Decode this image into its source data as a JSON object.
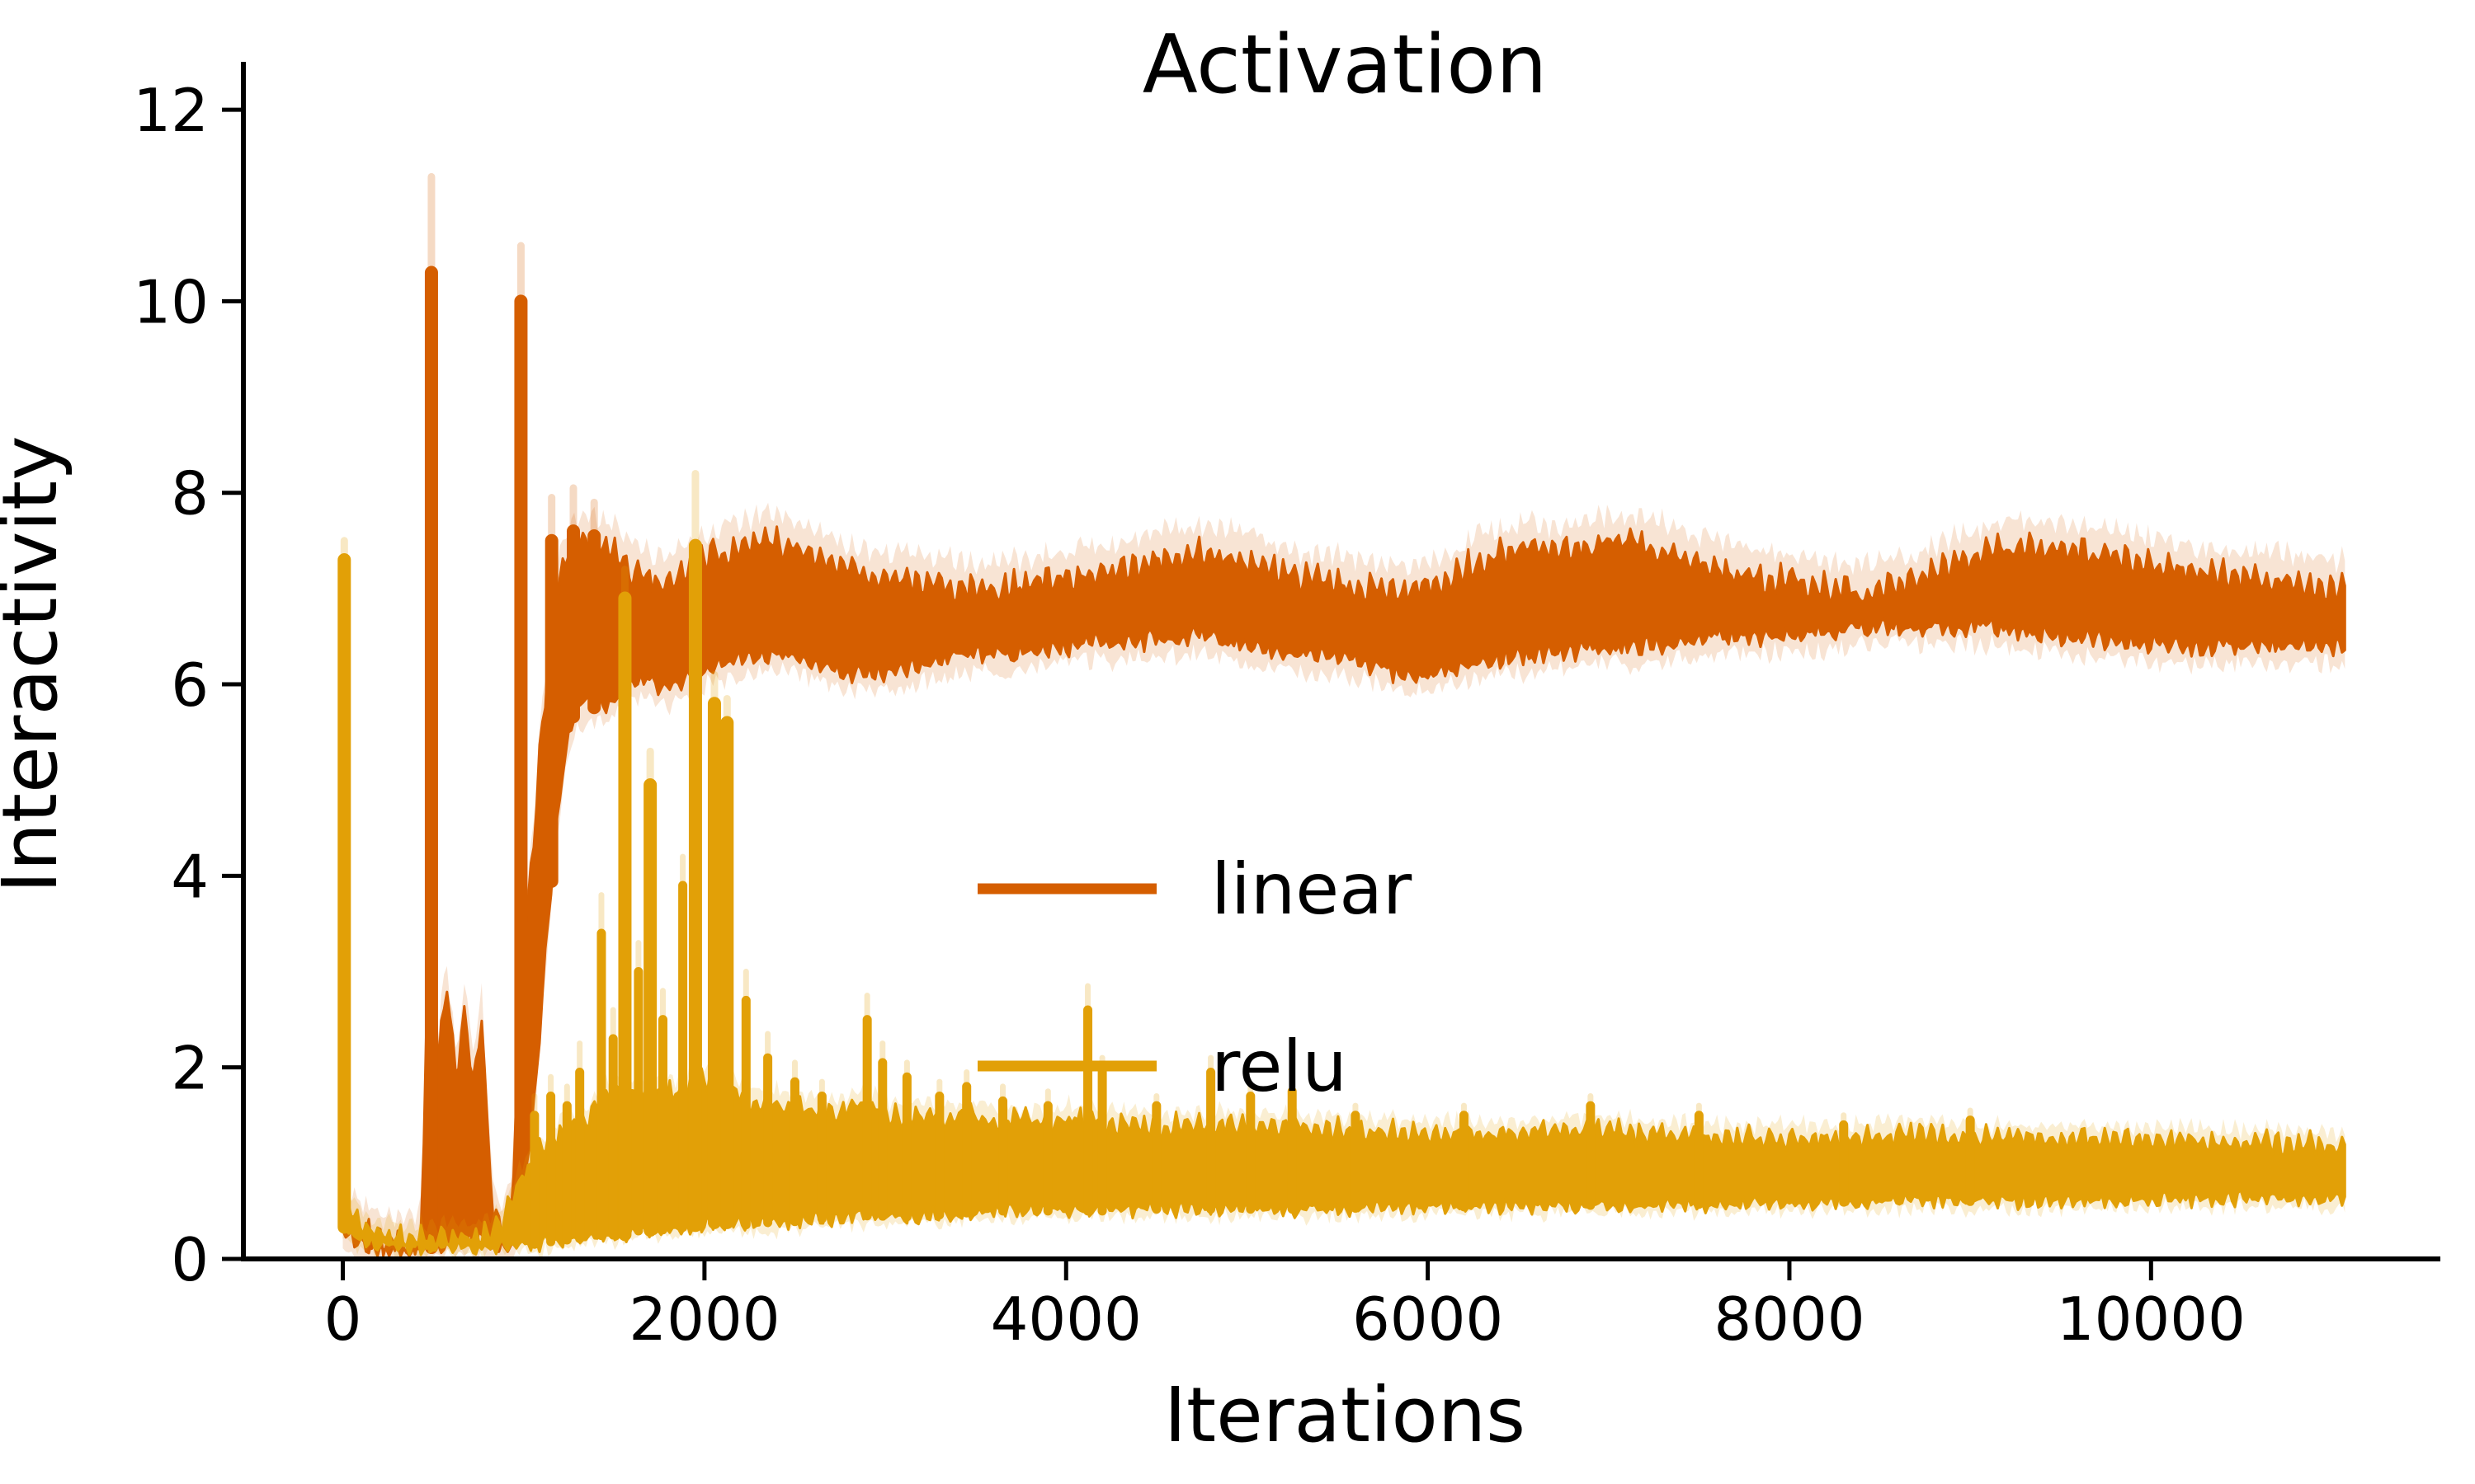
{
  "figure": {
    "background": "#ffffff",
    "text_color": "#000000"
  },
  "chart_data": {
    "type": "line",
    "title": "Activation",
    "xlabel": "Iterations",
    "ylabel": "Interactivity",
    "xlim": [
      -550,
      11600
    ],
    "ylim": [
      0,
      12.5
    ],
    "xticks": [
      0,
      2000,
      4000,
      6000,
      8000,
      10000
    ],
    "yticks": [
      0,
      2,
      4,
      6,
      8,
      10,
      12
    ],
    "x_end": 11080,
    "grid": false,
    "legend": {
      "location": "center",
      "frame": false,
      "entries": [
        {
          "label": "linear"
        },
        {
          "label": "relu"
        }
      ]
    },
    "series": [
      {
        "name": "linear",
        "color": "#d55e00",
        "envelope_opacity": 0.17,
        "envelope_pad_top": 0.28,
        "envelope_pad_bottom": 0.18,
        "noise_amp": 0.09,
        "scallop_amp": 0.1,
        "seed": 42,
        "band": [
          [
            0,
            0.3,
            0.6
          ],
          [
            70,
            0.15,
            0.35
          ],
          [
            200,
            0.1,
            0.22
          ],
          [
            350,
            0.08,
            0.18
          ],
          [
            440,
            0.1,
            0.25
          ],
          [
            458,
            0.1,
            2.2
          ],
          [
            490,
            0.12,
            4.9
          ],
          [
            522,
            0.15,
            2.0
          ],
          [
            575,
            0.18,
            2.85
          ],
          [
            625,
            0.2,
            1.9
          ],
          [
            675,
            0.2,
            2.6
          ],
          [
            725,
            0.2,
            1.8
          ],
          [
            768,
            0.2,
            2.6
          ],
          [
            800,
            0.15,
            1.3
          ],
          [
            835,
            0.1,
            0.45
          ],
          [
            885,
            0.1,
            0.3
          ],
          [
            935,
            0.12,
            0.6
          ],
          [
            968,
            0.3,
            2.1
          ],
          [
            1005,
            0.8,
            3.3
          ],
          [
            1045,
            1.4,
            4.1
          ],
          [
            1090,
            2.4,
            5.3
          ],
          [
            1135,
            3.5,
            6.2
          ],
          [
            1180,
            4.5,
            6.9
          ],
          [
            1225,
            5.2,
            7.25
          ],
          [
            1270,
            5.65,
            7.45
          ],
          [
            1330,
            5.8,
            7.5
          ],
          [
            1400,
            5.75,
            7.45
          ],
          [
            1470,
            5.8,
            7.4
          ],
          [
            1540,
            5.95,
            7.3
          ],
          [
            1620,
            6.0,
            7.15
          ],
          [
            1700,
            6.05,
            7.1
          ],
          [
            1760,
            5.95,
            7.05
          ],
          [
            1850,
            6.0,
            7.15
          ],
          [
            1950,
            6.1,
            7.25
          ],
          [
            2050,
            6.2,
            7.35
          ],
          [
            2200,
            6.25,
            7.45
          ],
          [
            2350,
            6.3,
            7.5
          ],
          [
            2500,
            6.28,
            7.42
          ],
          [
            2650,
            6.2,
            7.3
          ],
          [
            2800,
            6.12,
            7.18
          ],
          [
            2950,
            6.12,
            7.12
          ],
          [
            3100,
            6.15,
            7.1
          ],
          [
            3250,
            6.22,
            7.06
          ],
          [
            3400,
            6.3,
            7.0
          ],
          [
            3550,
            6.32,
            6.98
          ],
          [
            3700,
            6.3,
            7.02
          ],
          [
            3850,
            6.35,
            7.08
          ],
          [
            4000,
            6.4,
            7.1
          ],
          [
            4150,
            6.44,
            7.14
          ],
          [
            4300,
            6.42,
            7.18
          ],
          [
            4450,
            6.46,
            7.26
          ],
          [
            4600,
            6.5,
            7.35
          ],
          [
            4750,
            6.5,
            7.38
          ],
          [
            4900,
            6.44,
            7.32
          ],
          [
            5050,
            6.38,
            7.24
          ],
          [
            5200,
            6.33,
            7.15
          ],
          [
            5350,
            6.3,
            7.1
          ],
          [
            5500,
            6.28,
            7.06
          ],
          [
            5650,
            6.22,
            7.0
          ],
          [
            5800,
            6.12,
            6.98
          ],
          [
            5950,
            6.08,
            7.0
          ],
          [
            6100,
            6.15,
            7.08
          ],
          [
            6250,
            6.22,
            7.25
          ],
          [
            6400,
            6.28,
            7.36
          ],
          [
            6550,
            6.3,
            7.4
          ],
          [
            6700,
            6.32,
            7.38
          ],
          [
            6850,
            6.36,
            7.42
          ],
          [
            7000,
            6.4,
            7.48
          ],
          [
            7150,
            6.4,
            7.48
          ],
          [
            7300,
            6.4,
            7.4
          ],
          [
            7450,
            6.45,
            7.3
          ],
          [
            7600,
            6.5,
            7.22
          ],
          [
            7750,
            6.5,
            7.14
          ],
          [
            7900,
            6.5,
            7.1
          ],
          [
            8050,
            6.52,
            7.06
          ],
          [
            8200,
            6.54,
            7.0
          ],
          [
            8350,
            6.58,
            6.96
          ],
          [
            8500,
            6.6,
            6.98
          ],
          [
            8650,
            6.6,
            7.06
          ],
          [
            8800,
            6.6,
            7.16
          ],
          [
            8950,
            6.6,
            7.28
          ],
          [
            9100,
            6.6,
            7.38
          ],
          [
            9250,
            6.57,
            7.44
          ],
          [
            9400,
            6.53,
            7.43
          ],
          [
            9550,
            6.5,
            7.4
          ],
          [
            9700,
            6.47,
            7.36
          ],
          [
            9850,
            6.44,
            7.3
          ],
          [
            10000,
            6.42,
            7.24
          ],
          [
            10150,
            6.4,
            7.2
          ],
          [
            10300,
            6.4,
            7.16
          ],
          [
            10450,
            6.4,
            7.13
          ],
          [
            10600,
            6.4,
            7.1
          ],
          [
            10750,
            6.4,
            7.08
          ],
          [
            10900,
            6.39,
            7.04
          ],
          [
            11080,
            6.38,
            7.0
          ]
        ],
        "spikes": [
          [
            490,
            10.3,
            11.3
          ],
          [
            985,
            10.0,
            10.58
          ],
          [
            1155,
            7.5,
            7.95
          ],
          [
            1275,
            7.6,
            8.05
          ],
          [
            1390,
            7.55,
            7.9
          ]
        ]
      },
      {
        "name": "relu",
        "color": "#e2a007",
        "envelope_opacity": 0.18,
        "envelope_pad_top": 0.14,
        "envelope_pad_bottom": 0.08,
        "noise_amp": 0.07,
        "scallop_amp": 0.08,
        "seed": 7,
        "band": [
          [
            0,
            0.35,
            0.7
          ],
          [
            60,
            0.22,
            0.48
          ],
          [
            150,
            0.15,
            0.3
          ],
          [
            300,
            0.12,
            0.24
          ],
          [
            500,
            0.11,
            0.22
          ],
          [
            700,
            0.11,
            0.22
          ],
          [
            800,
            0.12,
            0.28
          ],
          [
            900,
            0.14,
            0.45
          ],
          [
            990,
            0.15,
            0.85
          ],
          [
            1050,
            0.15,
            1.05
          ],
          [
            1150,
            0.18,
            1.25
          ],
          [
            1250,
            0.2,
            1.35
          ],
          [
            1350,
            0.22,
            1.45
          ],
          [
            1450,
            0.25,
            1.7
          ],
          [
            1550,
            0.25,
            1.75
          ],
          [
            1650,
            0.3,
            1.8
          ],
          [
            1750,
            0.3,
            1.7
          ],
          [
            1850,
            0.32,
            1.75
          ],
          [
            1950,
            0.35,
            1.85
          ],
          [
            2050,
            0.38,
            1.9
          ],
          [
            2150,
            0.38,
            1.8
          ],
          [
            2250,
            0.35,
            1.65
          ],
          [
            2350,
            0.38,
            1.65
          ],
          [
            2450,
            0.38,
            1.6
          ],
          [
            2550,
            0.4,
            1.58
          ],
          [
            2650,
            0.42,
            1.52
          ],
          [
            2750,
            0.42,
            1.55
          ],
          [
            2850,
            0.45,
            1.6
          ],
          [
            2950,
            0.45,
            1.55
          ],
          [
            3050,
            0.44,
            1.5
          ],
          [
            3150,
            0.44,
            1.5
          ],
          [
            3300,
            0.46,
            1.46
          ],
          [
            3450,
            0.48,
            1.5
          ],
          [
            3600,
            0.5,
            1.46
          ],
          [
            3750,
            0.5,
            1.44
          ],
          [
            3900,
            0.5,
            1.42
          ],
          [
            4050,
            0.5,
            1.48
          ],
          [
            4200,
            0.5,
            1.42
          ],
          [
            4350,
            0.51,
            1.4
          ],
          [
            4500,
            0.52,
            1.38
          ],
          [
            4650,
            0.52,
            1.4
          ],
          [
            4800,
            0.52,
            1.4
          ],
          [
            4950,
            0.52,
            1.38
          ],
          [
            5100,
            0.52,
            1.4
          ],
          [
            5250,
            0.52,
            1.37
          ],
          [
            5400,
            0.53,
            1.35
          ],
          [
            5550,
            0.53,
            1.34
          ],
          [
            5700,
            0.53,
            1.33
          ],
          [
            5850,
            0.54,
            1.32
          ],
          [
            6000,
            0.54,
            1.31
          ],
          [
            6150,
            0.54,
            1.3
          ],
          [
            6300,
            0.55,
            1.3
          ],
          [
            6450,
            0.55,
            1.31
          ],
          [
            6600,
            0.55,
            1.32
          ],
          [
            6750,
            0.55,
            1.33
          ],
          [
            6900,
            0.56,
            1.34
          ],
          [
            7050,
            0.56,
            1.32
          ],
          [
            7200,
            0.56,
            1.3
          ],
          [
            7350,
            0.57,
            1.28
          ],
          [
            7500,
            0.57,
            1.27
          ],
          [
            7650,
            0.57,
            1.26
          ],
          [
            7800,
            0.58,
            1.26
          ],
          [
            7950,
            0.58,
            1.25
          ],
          [
            8100,
            0.58,
            1.26
          ],
          [
            8250,
            0.59,
            1.27
          ],
          [
            8400,
            0.6,
            1.28
          ],
          [
            8550,
            0.6,
            1.29
          ],
          [
            8700,
            0.6,
            1.3
          ],
          [
            8850,
            0.6,
            1.28
          ],
          [
            9000,
            0.6,
            1.27
          ],
          [
            9150,
            0.6,
            1.26
          ],
          [
            9300,
            0.6,
            1.26
          ],
          [
            9450,
            0.61,
            1.25
          ],
          [
            9600,
            0.61,
            1.25
          ],
          [
            9750,
            0.62,
            1.25
          ],
          [
            9900,
            0.62,
            1.24
          ],
          [
            10050,
            0.62,
            1.24
          ],
          [
            10200,
            0.62,
            1.23
          ],
          [
            10350,
            0.62,
            1.22
          ],
          [
            10500,
            0.63,
            1.22
          ],
          [
            10650,
            0.63,
            1.21
          ],
          [
            10800,
            0.63,
            1.2
          ],
          [
            10950,
            0.63,
            1.19
          ],
          [
            11080,
            0.63,
            1.18
          ]
        ],
        "spikes": [
          [
            8,
            7.3,
            7.5
          ],
          [
            1060,
            1.5,
            1.7
          ],
          [
            1150,
            1.7,
            1.9
          ],
          [
            1240,
            1.6,
            1.8
          ],
          [
            1310,
            1.95,
            2.25
          ],
          [
            1430,
            3.4,
            3.8
          ],
          [
            1495,
            2.3,
            2.6
          ],
          [
            1560,
            6.9,
            7.2
          ],
          [
            1635,
            3.0,
            3.3
          ],
          [
            1700,
            4.95,
            5.3
          ],
          [
            1770,
            2.5,
            2.8
          ],
          [
            1880,
            3.9,
            4.2
          ],
          [
            1950,
            7.45,
            8.2
          ],
          [
            2055,
            5.8,
            6.1
          ],
          [
            2125,
            5.6,
            5.85
          ],
          [
            2230,
            2.7,
            3.0
          ],
          [
            2350,
            2.1,
            2.35
          ],
          [
            2500,
            1.85,
            2.05
          ],
          [
            2650,
            1.7,
            1.85
          ],
          [
            2900,
            2.5,
            2.75
          ],
          [
            2985,
            2.05,
            2.25
          ],
          [
            3120,
            1.9,
            2.05
          ],
          [
            3300,
            1.7,
            1.85
          ],
          [
            3450,
            1.8,
            1.95
          ],
          [
            3650,
            1.65,
            1.8
          ],
          [
            3900,
            1.6,
            1.75
          ],
          [
            4120,
            2.6,
            2.85
          ],
          [
            4200,
            1.95,
            2.1
          ],
          [
            4500,
            1.6,
            1.7
          ],
          [
            4800,
            1.95,
            2.1
          ],
          [
            5020,
            1.7,
            1.8
          ],
          [
            5250,
            1.75,
            1.85
          ],
          [
            5600,
            1.5,
            1.6
          ],
          [
            6200,
            1.5,
            1.6
          ],
          [
            6900,
            1.6,
            1.7
          ],
          [
            7500,
            1.5,
            1.6
          ],
          [
            8300,
            1.4,
            1.5
          ],
          [
            9000,
            1.45,
            1.55
          ]
        ]
      }
    ]
  }
}
